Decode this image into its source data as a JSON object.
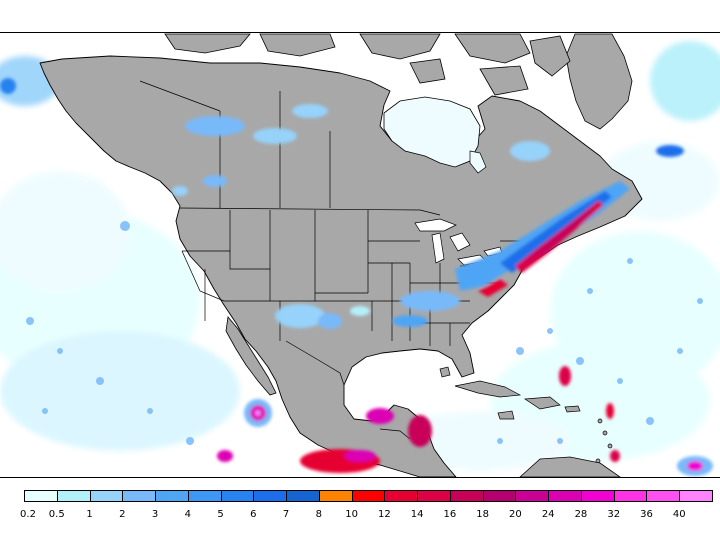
{
  "map": {
    "land_color": "#a8a8a8",
    "ocean_color": "#ffffff",
    "border_color": "#000000"
  },
  "legend": {
    "colors": [
      "#e6ffff",
      "#b4f0fa",
      "#96d2fa",
      "#78b9fa",
      "#50a5f5",
      "#3c97f5",
      "#2882f0",
      "#1e6eeb",
      "#1464d2",
      "#ff8200",
      "#ff0000",
      "#e60032",
      "#dc0046",
      "#c8005a",
      "#b4006e",
      "#c80096",
      "#dc00b4",
      "#f000d2",
      "#ff32e6",
      "#ff50f0",
      "#ff82ff"
    ],
    "labels": [
      "0.2",
      "0.5",
      "1",
      "2",
      "3",
      "4",
      "5",
      "6",
      "7",
      "8",
      "10",
      "12",
      "14",
      "16",
      "18",
      "20",
      "24",
      "28",
      "32",
      "36",
      "40"
    ]
  }
}
